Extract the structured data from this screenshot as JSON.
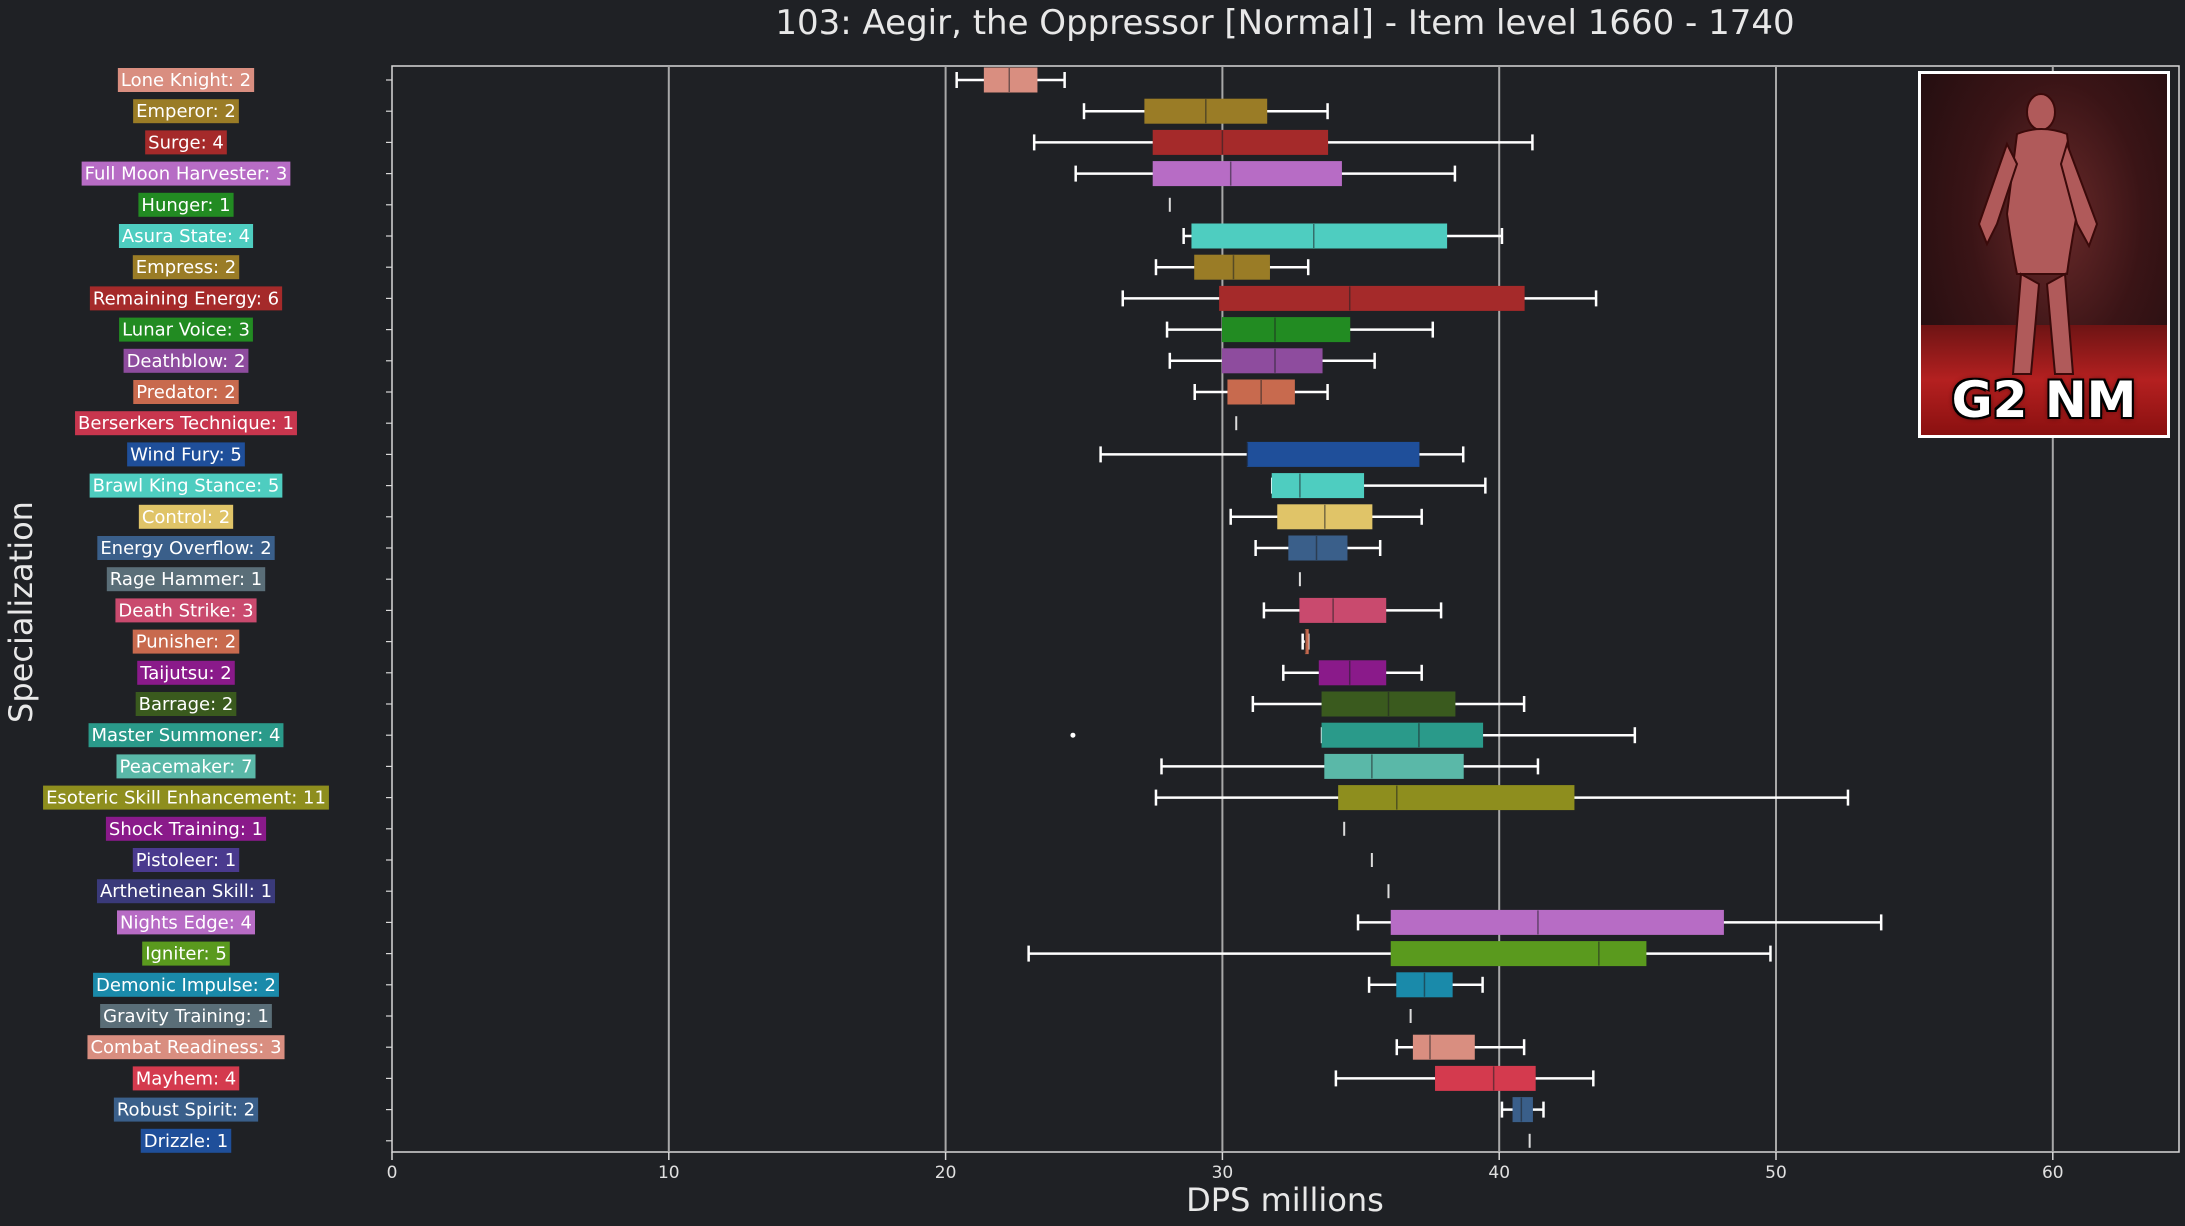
{
  "chart_data": {
    "type": "boxplot",
    "orientation": "horizontal",
    "title": "103: Aegir, the Oppressor [Normal] - Item level 1660 - 1740",
    "xlabel": "DPS millions",
    "ylabel": "Specialization",
    "xlim": [
      0,
      64.5
    ],
    "xticks": [
      "0",
      "10",
      "20",
      "30",
      "40",
      "50",
      "60"
    ],
    "grid": "vertical",
    "background": "#1f2125",
    "categories": [
      {
        "label": "Lone Knight: 2",
        "color": "#d98e80",
        "whislo": 20.4,
        "q1": 21.4,
        "med": 22.3,
        "q3": 23.3,
        "whishi": 24.3
      },
      {
        "label": "Emperor: 2",
        "color": "#9a7c26",
        "whislo": 25.0,
        "q1": 27.2,
        "med": 29.4,
        "q3": 31.6,
        "whishi": 33.8
      },
      {
        "label": "Surge: 4",
        "color": "#a52a2a",
        "whislo": 23.2,
        "q1": 27.5,
        "med": 30.0,
        "q3": 33.8,
        "whishi": 41.2
      },
      {
        "label": "Full Moon Harvester: 3",
        "color": "#b76cc5",
        "whislo": 24.7,
        "q1": 27.5,
        "med": 30.3,
        "q3": 34.3,
        "whishi": 38.4
      },
      {
        "label": "Hunger: 1",
        "color": "#228b22",
        "whislo": 28.1,
        "q1": 28.1,
        "med": 28.1,
        "q3": 28.1,
        "whishi": 28.1
      },
      {
        "label": "Asura State: 4",
        "color": "#4ecdc0",
        "whislo": 28.6,
        "q1": 28.9,
        "med": 33.3,
        "q3": 38.1,
        "whishi": 40.1
      },
      {
        "label": "Empress: 2",
        "color": "#9a7c26",
        "whislo": 27.6,
        "q1": 29.0,
        "med": 30.4,
        "q3": 31.7,
        "whishi": 33.1
      },
      {
        "label": "Remaining Energy: 6",
        "color": "#a52a2a",
        "whislo": 26.4,
        "q1": 29.9,
        "med": 34.6,
        "q3": 40.9,
        "whishi": 43.5
      },
      {
        "label": "Lunar Voice: 3",
        "color": "#228b22",
        "whislo": 28.0,
        "q1": 30.0,
        "med": 31.9,
        "q3": 34.6,
        "whishi": 37.6
      },
      {
        "label": "Deathblow: 2",
        "color": "#8e4c9e",
        "whislo": 28.1,
        "q1": 30.0,
        "med": 31.9,
        "q3": 33.6,
        "whishi": 35.5
      },
      {
        "label": "Predator: 2",
        "color": "#c86a4e",
        "whislo": 29.0,
        "q1": 30.2,
        "med": 31.4,
        "q3": 32.6,
        "whishi": 33.8
      },
      {
        "label": "Berserkers Technique: 1",
        "color": "#c8364e",
        "whislo": 30.5,
        "q1": 30.5,
        "med": 30.5,
        "q3": 30.5,
        "whishi": 30.5
      },
      {
        "label": "Wind Fury: 5",
        "color": "#1f4f9a",
        "whislo": 25.6,
        "q1": 30.9,
        "med": 30.9,
        "q3": 37.1,
        "whishi": 38.7
      },
      {
        "label": "Brawl King Stance: 5",
        "color": "#4ecdc0",
        "whislo": 31.8,
        "q1": 31.8,
        "med": 32.8,
        "q3": 35.1,
        "whishi": 39.5
      },
      {
        "label": "Control: 2",
        "color": "#e0c468",
        "whislo": 30.3,
        "q1": 32.0,
        "med": 33.7,
        "q3": 35.4,
        "whishi": 37.2
      },
      {
        "label": "Energy Overflow: 2",
        "color": "#3a5f8a",
        "whislo": 31.2,
        "q1": 32.4,
        "med": 33.4,
        "q3": 34.5,
        "whishi": 35.7
      },
      {
        "label": "Rage Hammer: 1",
        "color": "#5a6e78",
        "whislo": 32.8,
        "q1": 32.8,
        "med": 32.8,
        "q3": 32.8,
        "whishi": 32.8
      },
      {
        "label": "Death Strike: 3",
        "color": "#c94a6e",
        "whislo": 31.5,
        "q1": 32.8,
        "med": 34.0,
        "q3": 35.9,
        "whishi": 37.9
      },
      {
        "label": "Punisher: 2",
        "color": "#c86a4e",
        "whislo": 32.9,
        "q1": 33.0,
        "med": 33.0,
        "q3": 33.1,
        "whishi": 33.1
      },
      {
        "label": "Taijutsu: 2",
        "color": "#8a1a8a",
        "whislo": 32.2,
        "q1": 33.5,
        "med": 34.6,
        "q3": 35.9,
        "whishi": 37.2
      },
      {
        "label": "Barrage: 2",
        "color": "#3a5a1e",
        "whislo": 31.1,
        "q1": 33.6,
        "med": 36.0,
        "q3": 38.4,
        "whishi": 40.9
      },
      {
        "label": "Master Summoner: 4",
        "color": "#2a9a8a",
        "whislo": 33.6,
        "q1": 33.6,
        "med": 37.1,
        "q3": 39.4,
        "whishi": 44.9,
        "fliers": [
          24.6
        ]
      },
      {
        "label": "Peacemaker: 7",
        "color": "#5ab8a8",
        "whislo": 27.8,
        "q1": 33.7,
        "med": 35.4,
        "q3": 38.7,
        "whishi": 41.4
      },
      {
        "label": "Esoteric Skill Enhancement: 11",
        "color": "#8e8e1e",
        "whislo": 27.6,
        "q1": 34.2,
        "med": 36.3,
        "q3": 42.7,
        "whishi": 52.6
      },
      {
        "label": "Shock Training: 1",
        "color": "#8a1a8a",
        "whislo": 34.4,
        "q1": 34.4,
        "med": 34.4,
        "q3": 34.4,
        "whishi": 34.4
      },
      {
        "label": "Pistoleer: 1",
        "color": "#4a3a8e",
        "whislo": 35.4,
        "q1": 35.4,
        "med": 35.4,
        "q3": 35.4,
        "whishi": 35.4
      },
      {
        "label": "Arthetinean Skill: 1",
        "color": "#3a3a7a",
        "whislo": 36.0,
        "q1": 36.0,
        "med": 36.0,
        "q3": 36.0,
        "whishi": 36.0
      },
      {
        "label": "Nights Edge: 4",
        "color": "#b76cc5",
        "whislo": 34.9,
        "q1": 36.1,
        "med": 41.4,
        "q3": 48.1,
        "whishi": 53.8
      },
      {
        "label": "Igniter: 5",
        "color": "#5a9a1e",
        "whislo": 23.0,
        "q1": 36.1,
        "med": 43.6,
        "q3": 45.3,
        "whishi": 49.8
      },
      {
        "label": "Demonic Impulse: 2",
        "color": "#1a8aaa",
        "whislo": 35.3,
        "q1": 36.3,
        "med": 37.3,
        "q3": 38.3,
        "whishi": 39.4
      },
      {
        "label": "Gravity Training: 1",
        "color": "#5a6e78",
        "whislo": 36.8,
        "q1": 36.8,
        "med": 36.8,
        "q3": 36.8,
        "whishi": 36.8
      },
      {
        "label": "Combat Readiness: 3",
        "color": "#d98e80",
        "whislo": 36.3,
        "q1": 36.9,
        "med": 37.5,
        "q3": 39.1,
        "whishi": 40.9
      },
      {
        "label": "Mayhem: 4",
        "color": "#d43a4e",
        "whislo": 34.1,
        "q1": 37.7,
        "med": 39.8,
        "q3": 41.3,
        "whishi": 43.4
      },
      {
        "label": "Robust Spirit: 2",
        "color": "#3a5f8a",
        "whislo": 40.1,
        "q1": 40.5,
        "med": 40.8,
        "q3": 41.2,
        "whishi": 41.6
      },
      {
        "label": "Drizzle: 1",
        "color": "#1f4f9a",
        "whislo": 41.1,
        "q1": 41.1,
        "med": 41.1,
        "q3": 41.1,
        "whishi": 41.1
      }
    ]
  },
  "thumbnail": {
    "label": "G2 NM",
    "border_color": "#ffffff"
  }
}
